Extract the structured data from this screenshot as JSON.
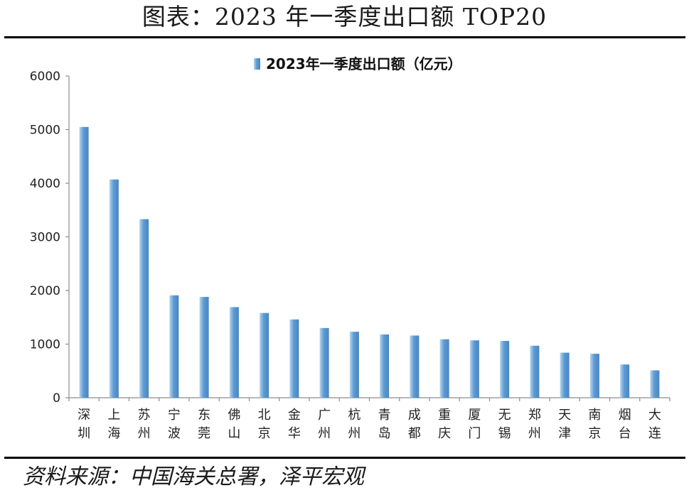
{
  "figure": {
    "title": "图表：2023 年一季度出口额 TOP20",
    "source": "资料来源：中国海关总署，泽平宏观"
  },
  "chart_data": {
    "type": "bar",
    "legend": "2023年一季度出口额（亿元）",
    "legend_position": "top-center",
    "categories": [
      "深圳",
      "上海",
      "苏州",
      "宁波",
      "东莞",
      "佛山",
      "北京",
      "金华",
      "广州",
      "杭州",
      "青岛",
      "成都",
      "重庆",
      "厦门",
      "无锡",
      "郑州",
      "天津",
      "南京",
      "烟台",
      "大连"
    ],
    "series": [
      {
        "name": "2023年一季度出口额（亿元）",
        "values": [
          5050,
          4070,
          3330,
          1910,
          1880,
          1690,
          1580,
          1460,
          1300,
          1230,
          1180,
          1160,
          1090,
          1070,
          1060,
          970,
          840,
          820,
          620,
          510
        ]
      }
    ],
    "ylim": [
      0,
      6000
    ],
    "yticks": [
      0,
      1000,
      2000,
      3000,
      4000,
      5000,
      6000
    ],
    "grid": false,
    "colors": {
      "bar": "#5b9bd5",
      "bar_light": "#b9d4ea",
      "bar_dark": "#4a86be",
      "axis": "#8c8c8c"
    }
  }
}
